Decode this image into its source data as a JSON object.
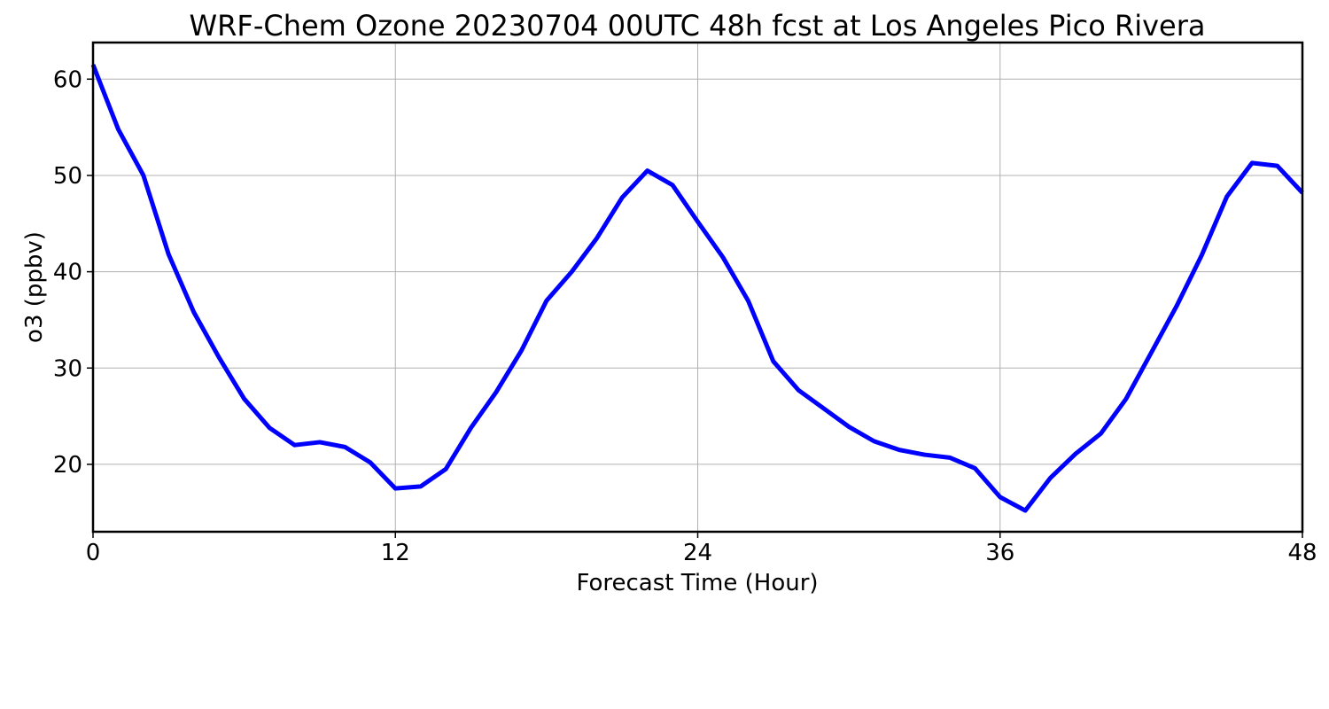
{
  "chart_data": {
    "type": "line",
    "title": "WRF-Chem Ozone  20230704 00UTC 48h fcst at Los Angeles Pico Rivera",
    "xlabel": "Forecast Time (Hour)",
    "ylabel": "o3  (ppbv)",
    "xlim": [
      0,
      48
    ],
    "ylim": [
      13,
      63.8
    ],
    "xticks": [
      0,
      12,
      24,
      36,
      48
    ],
    "yticks": [
      20,
      30,
      40,
      50,
      60
    ],
    "grid": true,
    "colors": {
      "line": "#0000ff"
    },
    "series": [
      {
        "x": [
          0,
          1,
          2,
          3,
          4,
          5,
          6,
          7,
          8,
          9,
          10,
          11,
          12,
          13,
          14,
          15,
          16,
          17,
          18,
          19,
          20,
          21,
          22,
          23,
          24,
          25,
          26,
          27,
          28,
          29,
          30,
          31,
          32,
          33,
          34,
          35,
          36,
          37,
          38,
          39,
          40,
          41,
          42,
          43,
          44,
          45,
          46,
          47,
          48
        ],
        "values": [
          61.5,
          54.8,
          50.0,
          41.8,
          35.8,
          31.1,
          26.8,
          23.8,
          22.0,
          22.3,
          21.8,
          20.2,
          17.5,
          17.7,
          19.5,
          23.8,
          27.5,
          31.8,
          37.0,
          40.0,
          43.5,
          47.7,
          50.5,
          49.0,
          45.2,
          41.5,
          37.0,
          30.7,
          27.7,
          25.8,
          23.9,
          22.4,
          21.5,
          21.0,
          20.7,
          19.6,
          16.6,
          15.2,
          18.6,
          21.1,
          23.2,
          26.8,
          31.6,
          36.4,
          41.7,
          47.8,
          51.3,
          51.0,
          48.2
        ]
      }
    ]
  }
}
